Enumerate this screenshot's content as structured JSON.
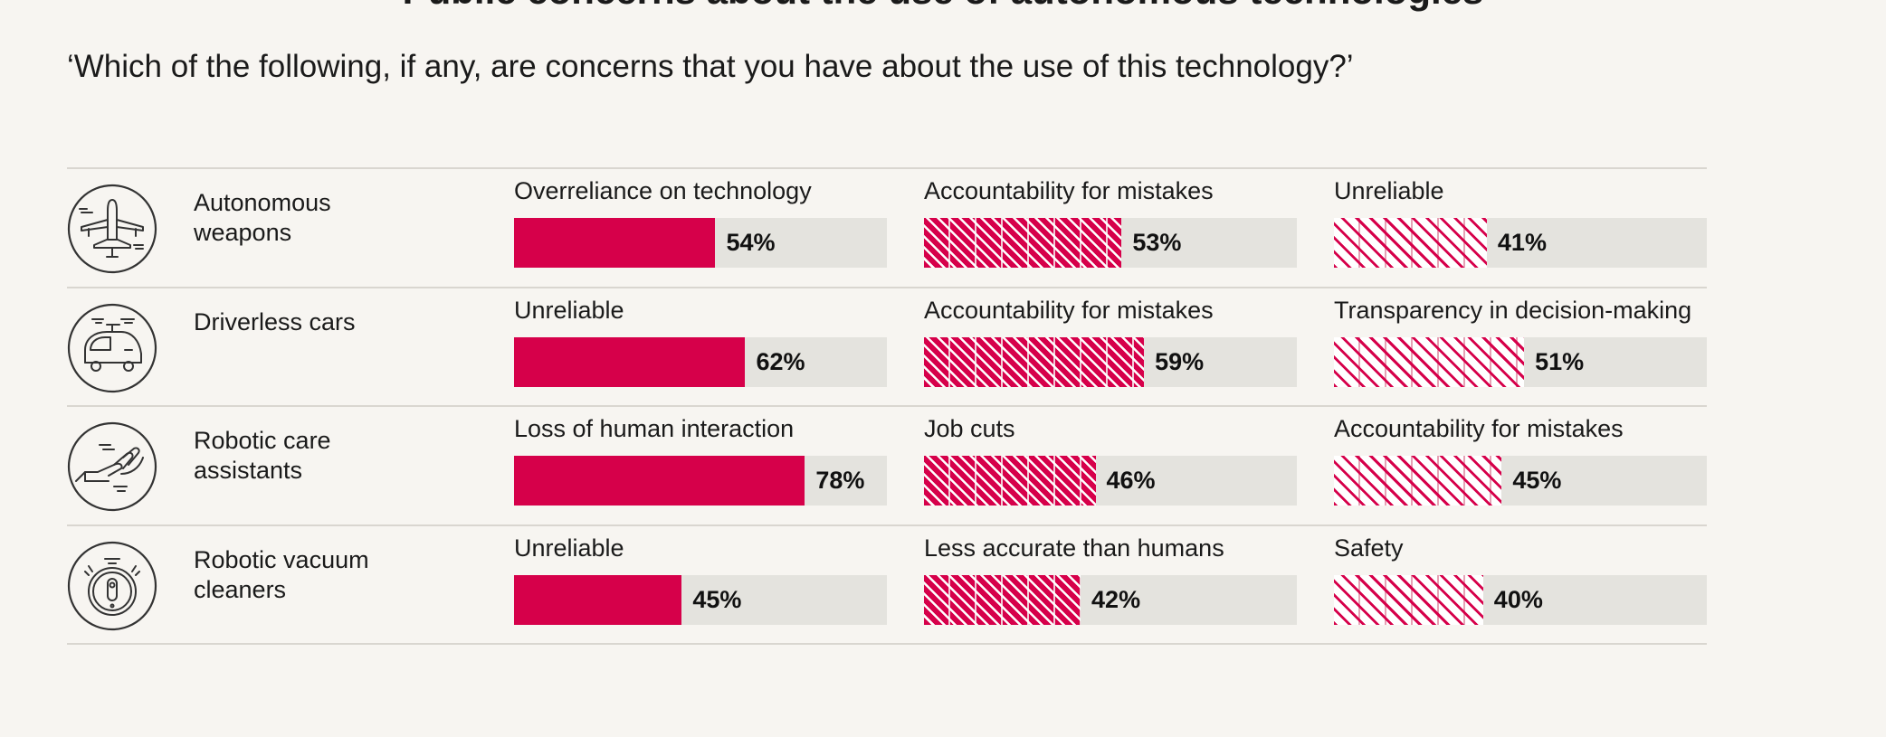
{
  "title": "Public concerns about the use of autonomous technologies",
  "question": "‘Which of the following, if any, are concerns that you have about the use of this technology?’",
  "colors": {
    "accent": "#d6004a",
    "track": "#e4e3de",
    "background": "#f7f5f1",
    "rule": "#d9d6d0"
  },
  "chart_data": {
    "type": "bar",
    "title": "‘Which of the following, if any, are concerns that you have about the use of this technology?’",
    "unit": "%",
    "xlim": [
      0,
      100
    ],
    "rows": [
      {
        "label": "Autonomous weapons",
        "icon": "drone-icon",
        "concerns": [
          {
            "label": "Overreliance on technology",
            "value": 54,
            "display": "54%",
            "style": "solid"
          },
          {
            "label": "Accountability for mistakes",
            "value": 53,
            "display": "53%",
            "style": "dense-hatch"
          },
          {
            "label": "Unreliable",
            "value": 41,
            "display": "41%",
            "style": "light-hatch"
          }
        ]
      },
      {
        "label": "Driverless cars",
        "icon": "car-icon",
        "concerns": [
          {
            "label": "Unreliable",
            "value": 62,
            "display": "62%",
            "style": "solid"
          },
          {
            "label": "Accountability for mistakes",
            "value": 59,
            "display": "59%",
            "style": "dense-hatch"
          },
          {
            "label": "Transparency in decision-making",
            "value": 51,
            "display": "51%",
            "style": "light-hatch"
          }
        ]
      },
      {
        "label": "Robotic care assistants",
        "icon": "helping-hand-icon",
        "concerns": [
          {
            "label": "Loss of human interaction",
            "value": 78,
            "display": "78%",
            "style": "solid"
          },
          {
            "label": "Job cuts",
            "value": 46,
            "display": "46%",
            "style": "dense-hatch"
          },
          {
            "label": "Accountability for mistakes",
            "value": 45,
            "display": "45%",
            "style": "light-hatch"
          }
        ]
      },
      {
        "label": "Robotic vacuum cleaners",
        "icon": "robot-vacuum-icon",
        "concerns": [
          {
            "label": "Unreliable",
            "value": 45,
            "display": "45%",
            "style": "solid"
          },
          {
            "label": "Less accurate than humans",
            "value": 42,
            "display": "42%",
            "style": "dense-hatch"
          },
          {
            "label": "Safety",
            "value": 40,
            "display": "40%",
            "style": "light-hatch"
          }
        ]
      }
    ]
  }
}
